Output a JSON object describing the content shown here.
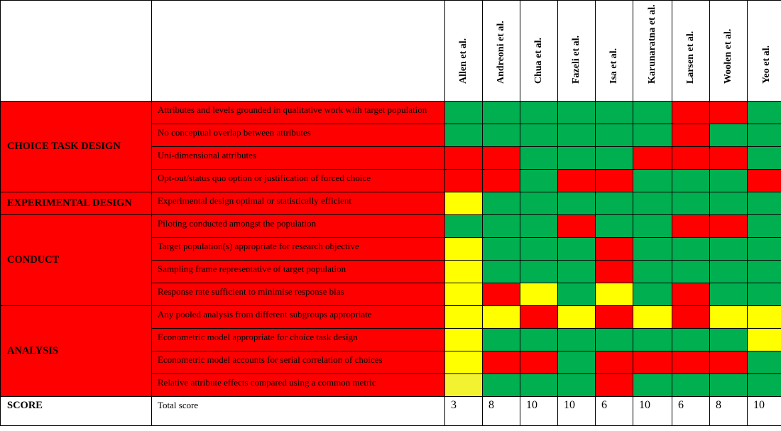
{
  "studies": [
    "Allen et al.",
    "Andreoni et al.",
    "Chua et al.",
    "Fazeli et al.",
    "Isa et al.",
    "Karunaratna et al.",
    "Larsen et al.",
    "Woolen et al.",
    "Yeo et al."
  ],
  "sections": [
    {
      "category": "CHOICE TASK DESIGN",
      "criteria": [
        "Attributes and levels grounded in qualitative work with target population",
        "No conceptual overlap between attributes",
        "Uni-dimensional attributes",
        "Opt-out/status quo option or justification of forced choice"
      ]
    },
    {
      "category": "EXPERIMENTAL DESIGN",
      "criteria": [
        "Experimental design optimal or statistically efficient"
      ]
    },
    {
      "category": "CONDUCT",
      "criteria": [
        "Piloting conducted amongst the population",
        "Target population(s) appropriate for research objective",
        "Sampling frame representative of target population",
        "Response rate sufficient to minimise response bias"
      ]
    },
    {
      "category": "ANALYSIS",
      "criteria": [
        "Any pooled analysis from different subgroups appropriate",
        "Econometric model appropriate for choice task design",
        "Econometric model accounts for serial correlation of choices",
        "Relative attribute effects compared using a common metric"
      ]
    }
  ],
  "ratings_legend": {
    "g": "#00b050",
    "r": "#ff0000",
    "y": "#ffff00"
  },
  "ratings": [
    [
      "g",
      "g",
      "g",
      "g",
      "g",
      "g",
      "r",
      "r",
      "g"
    ],
    [
      "g",
      "g",
      "g",
      "g",
      "g",
      "g",
      "r",
      "g",
      "g"
    ],
    [
      "r",
      "r",
      "g",
      "g",
      "g",
      "r",
      "r",
      "r",
      "g"
    ],
    [
      "r",
      "r",
      "g",
      "r",
      "r",
      "g",
      "g",
      "g",
      "r"
    ],
    [
      "y",
      "g",
      "g",
      "g",
      "g",
      "g",
      "g",
      "g",
      "g"
    ],
    [
      "g",
      "g",
      "g",
      "r",
      "g",
      "g",
      "r",
      "r",
      "g"
    ],
    [
      "y",
      "g",
      "g",
      "g",
      "r",
      "g",
      "g",
      "g",
      "g"
    ],
    [
      "y",
      "g",
      "g",
      "g",
      "r",
      "g",
      "g",
      "g",
      "g"
    ],
    [
      "y",
      "r",
      "y",
      "g",
      "y",
      "g",
      "r",
      "g",
      "g"
    ],
    [
      "y",
      "y",
      "r",
      "y",
      "r",
      "y",
      "r",
      "y",
      "y"
    ],
    [
      "y",
      "g",
      "g",
      "g",
      "g",
      "g",
      "g",
      "g",
      "y"
    ],
    [
      "y",
      "r",
      "r",
      "g",
      "r",
      "r",
      "r",
      "r",
      "g"
    ],
    [
      "yl",
      "g",
      "g",
      "g",
      "r",
      "g",
      "g",
      "g",
      "g"
    ]
  ],
  "score_row": {
    "category": "SCORE",
    "label": "Total score",
    "values": [
      "3",
      "8",
      "10",
      "10",
      "6",
      "10",
      "6",
      "8",
      "10"
    ]
  }
}
